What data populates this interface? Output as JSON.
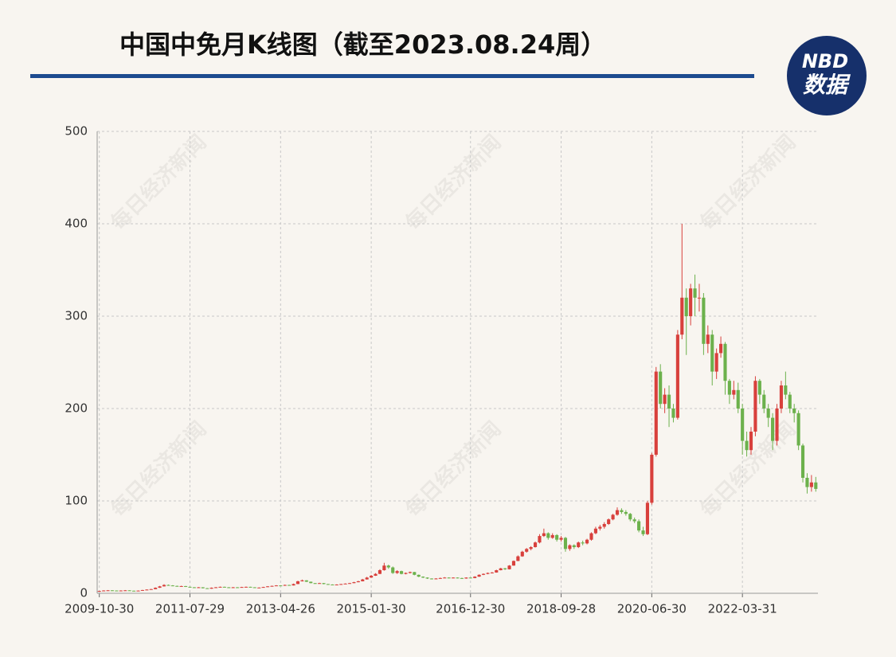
{
  "chart_data": {
    "type": "candlestick",
    "title": "中国中免月K线图（截至2023.08.24周）",
    "logo": {
      "top": "NBD",
      "bottom": "数据"
    },
    "watermark": "每日经济新闻",
    "up_color": "#d8403c",
    "down_color": "#6cb14c",
    "grid": true,
    "ylim": [
      0,
      500
    ],
    "yticks": [
      0,
      100,
      200,
      300,
      400,
      500
    ],
    "categories": [
      "2009-10-30",
      null,
      null,
      null,
      null,
      null,
      null,
      null,
      null,
      null,
      null,
      null,
      null,
      null,
      null,
      null,
      null,
      null,
      null,
      null,
      null,
      "2011-07-29",
      null,
      null,
      null,
      null,
      null,
      null,
      null,
      null,
      null,
      null,
      null,
      null,
      null,
      null,
      null,
      null,
      null,
      null,
      null,
      null,
      "2013-04-26",
      null,
      null,
      null,
      null,
      null,
      null,
      null,
      null,
      null,
      null,
      null,
      null,
      null,
      null,
      null,
      null,
      null,
      null,
      null,
      null,
      "2015-01-30",
      null,
      null,
      null,
      null,
      null,
      null,
      null,
      null,
      null,
      null,
      null,
      null,
      null,
      null,
      null,
      null,
      null,
      null,
      null,
      null,
      null,
      null,
      "2016-12-30",
      null,
      null,
      null,
      null,
      null,
      null,
      null,
      null,
      null,
      null,
      null,
      null,
      null,
      null,
      null,
      null,
      null,
      null,
      null,
      null,
      "2018-09-28",
      null,
      null,
      null,
      null,
      null,
      null,
      null,
      null,
      null,
      null,
      null,
      null,
      null,
      null,
      null,
      null,
      null,
      null,
      null,
      null,
      "2020-06-30",
      null,
      null,
      null,
      null,
      null,
      null,
      null,
      null,
      null,
      null,
      null,
      null,
      null,
      null,
      null,
      null,
      null,
      null,
      null,
      null,
      "2022-03-31",
      null,
      null,
      null,
      null,
      null,
      null,
      null,
      null,
      null,
      null,
      null,
      null,
      null,
      null,
      null,
      null,
      null
    ],
    "ohlc": [
      [
        2.3,
        2.8,
        2.1,
        2.5
      ],
      [
        2.5,
        3.3,
        2.4,
        3
      ],
      [
        3,
        3.5,
        2.8,
        3.2
      ],
      [
        3.2,
        3.4,
        2.8,
        3
      ],
      [
        3,
        3.1,
        2.6,
        2.8
      ],
      [
        2.8,
        3.2,
        2.7,
        3
      ],
      [
        3,
        3.5,
        2.9,
        3.2
      ],
      [
        3.2,
        3.3,
        2.6,
        2.8
      ],
      [
        2.8,
        2.9,
        2.4,
        2.6
      ],
      [
        2.6,
        3.1,
        2.5,
        2.9
      ],
      [
        2.9,
        3.7,
        2.8,
        3.5
      ],
      [
        3.5,
        4.3,
        3.4,
        4
      ],
      [
        4,
        4.8,
        3.9,
        4.5
      ],
      [
        4.5,
        6.4,
        4.4,
        6
      ],
      [
        6,
        8,
        5.8,
        7.5
      ],
      [
        7.5,
        9.8,
        7.3,
        9
      ],
      [
        9,
        9.5,
        8.2,
        8.5
      ],
      [
        8.5,
        8.8,
        7.7,
        8
      ],
      [
        8,
        8.3,
        7.2,
        7.5
      ],
      [
        7.5,
        8.2,
        7.3,
        7.8
      ],
      [
        7.8,
        8,
        6.8,
        7
      ],
      [
        7,
        7.3,
        6.3,
        6.5
      ],
      [
        6.5,
        6.7,
        5.8,
        6
      ],
      [
        6,
        6.8,
        5.8,
        6.5
      ],
      [
        6.5,
        6.6,
        5.3,
        5.5
      ],
      [
        5.5,
        5.7,
        4.8,
        5
      ],
      [
        5,
        6.3,
        4.9,
        6
      ],
      [
        6,
        6.8,
        5.9,
        6.5
      ],
      [
        6.5,
        7.3,
        6.4,
        7
      ],
      [
        7,
        7.2,
        6.3,
        6.5
      ],
      [
        6.5,
        6.7,
        5.8,
        6
      ],
      [
        6,
        6.8,
        5.9,
        6.5
      ],
      [
        6.5,
        6.7,
        6,
        6.2
      ],
      [
        6.2,
        7,
        6.1,
        6.8
      ],
      [
        6.8,
        7.3,
        6.7,
        7
      ],
      [
        7,
        7.1,
        6.3,
        6.5
      ],
      [
        6.5,
        6.6,
        5.8,
        6
      ],
      [
        6,
        6.4,
        5.9,
        6.2
      ],
      [
        6.2,
        7,
        6.1,
        6.8
      ],
      [
        6.8,
        7.8,
        6.7,
        7.5
      ],
      [
        7.5,
        8.3,
        7.4,
        8
      ],
      [
        8,
        8.8,
        7.9,
        8.5
      ],
      [
        8.5,
        8.7,
        8,
        8.2
      ],
      [
        8.2,
        9.4,
        8.1,
        9
      ],
      [
        9,
        9.2,
        8.3,
        8.5
      ],
      [
        8.5,
        10.5,
        8.4,
        10
      ],
      [
        10,
        13.5,
        9.9,
        13
      ],
      [
        13,
        14.8,
        12.8,
        14
      ],
      [
        14,
        14.2,
        12.2,
        12.5
      ],
      [
        12.5,
        12.7,
        10.8,
        11
      ],
      [
        11,
        11.2,
        10.2,
        10.5
      ],
      [
        10.5,
        11.4,
        10.4,
        11
      ],
      [
        11,
        11.2,
        9.8,
        10
      ],
      [
        10,
        10.1,
        9.3,
        9.5
      ],
      [
        9.5,
        9.7,
        8.8,
        9
      ],
      [
        9,
        9.7,
        8.9,
        9.5
      ],
      [
        9.5,
        10.2,
        9.4,
        10
      ],
      [
        10,
        10.8,
        9.9,
        10.5
      ],
      [
        10.5,
        11.3,
        10.4,
        11
      ],
      [
        11,
        12.4,
        10.9,
        12
      ],
      [
        12,
        13.5,
        11.9,
        13
      ],
      [
        13,
        15.6,
        12.9,
        15
      ],
      [
        15,
        17.8,
        14.8,
        17
      ],
      [
        17,
        19.8,
        16.8,
        19
      ],
      [
        19,
        21.8,
        18.8,
        21
      ],
      [
        21,
        26,
        20.8,
        25
      ],
      [
        25,
        33,
        24.5,
        30
      ],
      [
        30,
        31,
        26.5,
        28
      ],
      [
        28,
        29,
        21,
        22
      ],
      [
        22,
        25,
        21,
        24
      ],
      [
        24,
        24.5,
        20.5,
        21
      ],
      [
        21,
        22.5,
        20.5,
        22
      ],
      [
        22,
        23.5,
        21.5,
        23
      ],
      [
        23,
        23.2,
        19.5,
        20
      ],
      [
        20,
        20.3,
        17.5,
        18
      ],
      [
        18,
        18.3,
        16.5,
        17
      ],
      [
        17,
        17.3,
        15.5,
        16
      ],
      [
        16,
        16.2,
        15,
        15.5
      ],
      [
        15.5,
        16.4,
        15.2,
        16
      ],
      [
        16,
        17,
        15.8,
        16.5
      ],
      [
        16.5,
        17.5,
        16.3,
        17
      ],
      [
        17,
        17.3,
        16.2,
        16.5
      ],
      [
        16.5,
        17.3,
        16.3,
        17
      ],
      [
        17,
        17.2,
        16.2,
        16.5
      ],
      [
        16.5,
        16.8,
        15.6,
        16
      ],
      [
        16,
        17.3,
        15.8,
        17
      ],
      [
        17,
        17.2,
        16.2,
        16.5
      ],
      [
        16.5,
        18.5,
        16.3,
        18
      ],
      [
        18,
        20.5,
        17.8,
        20
      ],
      [
        20,
        21.5,
        19.7,
        21
      ],
      [
        21,
        22.5,
        20.6,
        22
      ],
      [
        22,
        23,
        21.5,
        22.5
      ],
      [
        22.5,
        25.5,
        22.3,
        25
      ],
      [
        25,
        27.5,
        24.8,
        27
      ],
      [
        27,
        27.5,
        25.3,
        26
      ],
      [
        26,
        30.5,
        25.8,
        30
      ],
      [
        30,
        35.5,
        29.8,
        35
      ],
      [
        35,
        41,
        34.8,
        40
      ],
      [
        40,
        46,
        39.5,
        45
      ],
      [
        45,
        49,
        44,
        48
      ],
      [
        48,
        51,
        46.5,
        50
      ],
      [
        50,
        56,
        49.5,
        55
      ],
      [
        55,
        64,
        54,
        62
      ],
      [
        62,
        70,
        61,
        65
      ],
      [
        65,
        66,
        58,
        60
      ],
      [
        60,
        65,
        59,
        63
      ],
      [
        63,
        64,
        56,
        58
      ],
      [
        58,
        62,
        56,
        60
      ],
      [
        60,
        61,
        45,
        48
      ],
      [
        48,
        53,
        46,
        52
      ],
      [
        52,
        53,
        48,
        50
      ],
      [
        50,
        56,
        49,
        55
      ],
      [
        55,
        57,
        52,
        54
      ],
      [
        54,
        59,
        53,
        58
      ],
      [
        58,
        66,
        57,
        65
      ],
      [
        65,
        72,
        64,
        70
      ],
      [
        70,
        74,
        68,
        72
      ],
      [
        72,
        77,
        70,
        75
      ],
      [
        75,
        81,
        74,
        80
      ],
      [
        80,
        86,
        79,
        85
      ],
      [
        85,
        93,
        84,
        90
      ],
      [
        90,
        92,
        86,
        88
      ],
      [
        88,
        90,
        84,
        86
      ],
      [
        86,
        87,
        78,
        80
      ],
      [
        80,
        82,
        76,
        78
      ],
      [
        78,
        80,
        66,
        68
      ],
      [
        68,
        72,
        62,
        64
      ],
      [
        64,
        100,
        63,
        98
      ],
      [
        98,
        152,
        96,
        150
      ],
      [
        150,
        245,
        148,
        240
      ],
      [
        240,
        248,
        200,
        205
      ],
      [
        205,
        222,
        195,
        215
      ],
      [
        215,
        225,
        180,
        200
      ],
      [
        200,
        205,
        185,
        190
      ],
      [
        190,
        285,
        188,
        280
      ],
      [
        280,
        400,
        275,
        320
      ],
      [
        320,
        330,
        258,
        300
      ],
      [
        300,
        335,
        290,
        330
      ],
      [
        330,
        345,
        300,
        320
      ],
      [
        320,
        335,
        305,
        320
      ],
      [
        320,
        325,
        258,
        270
      ],
      [
        270,
        290,
        260,
        280
      ],
      [
        280,
        285,
        225,
        240
      ],
      [
        240,
        265,
        232,
        260
      ],
      [
        260,
        278,
        255,
        270
      ],
      [
        270,
        272,
        215,
        230
      ],
      [
        230,
        232,
        205,
        215
      ],
      [
        215,
        230,
        210,
        220
      ],
      [
        220,
        228,
        195,
        200
      ],
      [
        200,
        205,
        150,
        165
      ],
      [
        165,
        175,
        148,
        155
      ],
      [
        155,
        180,
        150,
        175
      ],
      [
        175,
        235,
        170,
        230
      ],
      [
        230,
        232,
        205,
        215
      ],
      [
        215,
        220,
        195,
        200
      ],
      [
        200,
        205,
        180,
        190
      ],
      [
        190,
        195,
        155,
        165
      ],
      [
        165,
        205,
        160,
        200
      ],
      [
        200,
        230,
        195,
        225
      ],
      [
        225,
        240,
        210,
        215
      ],
      [
        215,
        218,
        195,
        200
      ],
      [
        200,
        205,
        185,
        195
      ],
      [
        195,
        198,
        155,
        160
      ],
      [
        160,
        162,
        120,
        125
      ],
      [
        125,
        130,
        108,
        115
      ],
      [
        115,
        128,
        110,
        120
      ],
      [
        120,
        126,
        110,
        113
      ]
    ]
  }
}
